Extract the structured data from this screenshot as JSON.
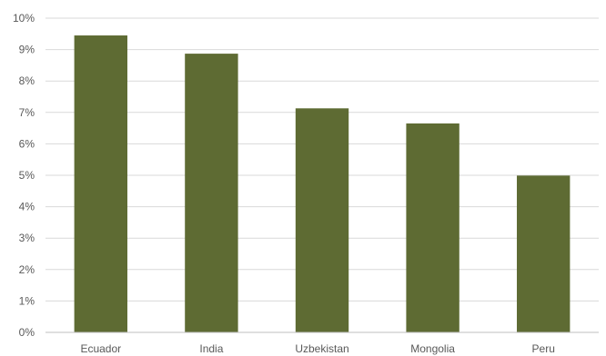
{
  "chart_data": {
    "type": "bar",
    "title": "",
    "xlabel": "",
    "ylabel": "",
    "categories": [
      "Ecuador",
      "India",
      "Uzbekistan",
      "Mongolia",
      "Peru"
    ],
    "values": [
      9.45,
      8.87,
      7.13,
      6.65,
      4.99
    ],
    "ylim": [
      0,
      10
    ],
    "y_ticks": [
      0,
      1,
      2,
      3,
      4,
      5,
      6,
      7,
      8,
      9,
      10
    ],
    "y_tick_labels": [
      "0%",
      "1%",
      "2%",
      "3%",
      "4%",
      "5%",
      "6%",
      "7%",
      "8%",
      "9%",
      "10%"
    ],
    "grid": true,
    "legend": "none",
    "bar_color": "#5e6b33"
  }
}
